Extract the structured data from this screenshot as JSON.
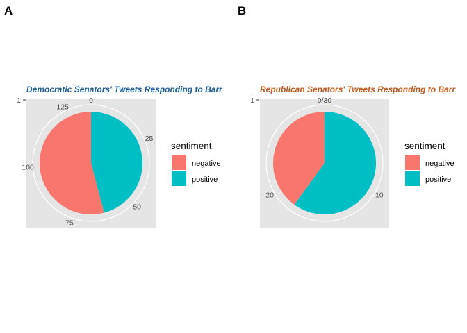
{
  "panel_labels": [
    "A",
    "B"
  ],
  "colors": {
    "negative": "#F8766D",
    "positive": "#00BFC4",
    "panel_bg": "#E5E5E5",
    "grid": "#FFFFFF"
  },
  "chart_data": [
    {
      "type": "pie",
      "panel": "A",
      "title": "Democratic Senators' Tweets Responding to Barr",
      "title_color": "#1F5F99",
      "x_tick_label": "1",
      "categories": [
        "negative",
        "positive"
      ],
      "values": [
        73,
        62
      ],
      "total": 135,
      "theta_ticks": [
        0,
        25,
        50,
        75,
        100,
        125
      ],
      "theta_tick_labels": [
        "0",
        "25",
        "50",
        "75",
        "100",
        "125"
      ],
      "legend": {
        "title": "sentiment",
        "position": "right",
        "entries": [
          "negative",
          "positive"
        ]
      }
    },
    {
      "type": "pie",
      "panel": "B",
      "title": "Republican Senators' Tweets Responding to Barr",
      "title_color": "#C25A1C",
      "x_tick_label": "1",
      "categories": [
        "negative",
        "positive"
      ],
      "values": [
        12,
        18
      ],
      "total": 30,
      "theta_ticks": [
        0,
        10,
        20
      ],
      "theta_tick_labels": [
        "0/30",
        "10",
        "20"
      ],
      "legend": {
        "title": "sentiment",
        "position": "right",
        "entries": [
          "negative",
          "positive"
        ]
      }
    }
  ]
}
